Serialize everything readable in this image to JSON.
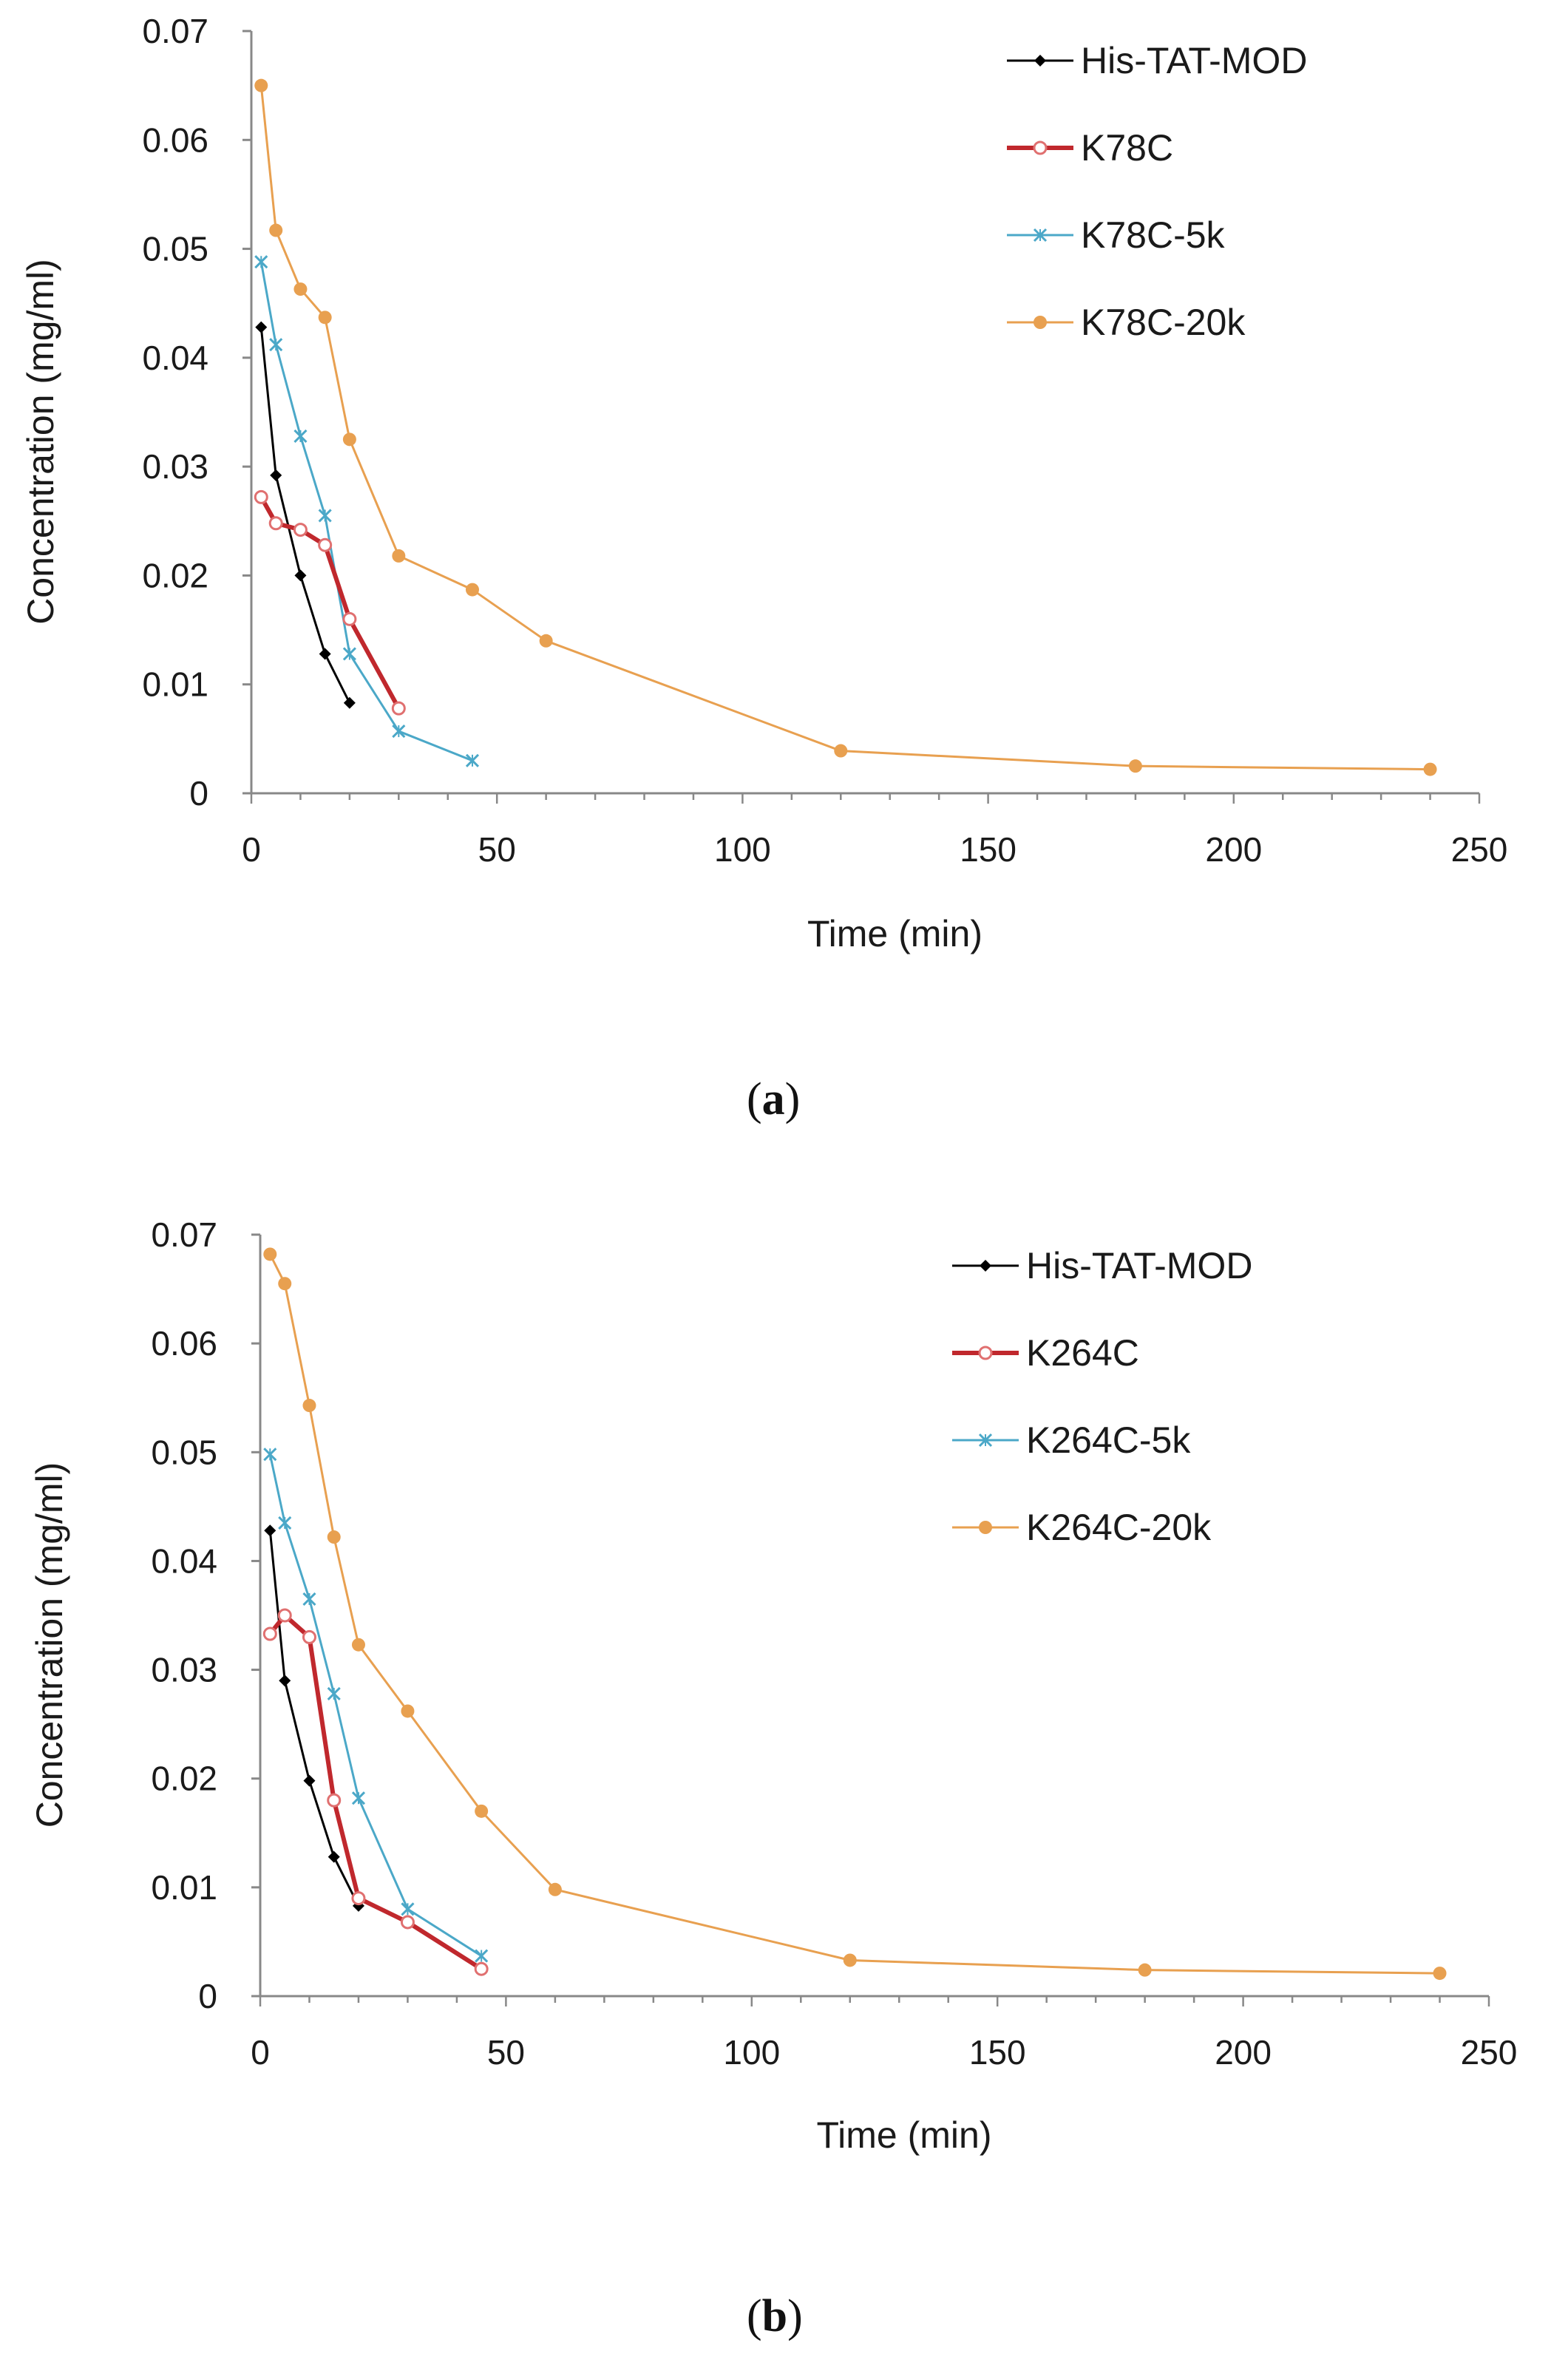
{
  "figure": {
    "panel_labels": [
      {
        "open": "(",
        "letter": "a",
        "close": ")"
      },
      {
        "open": "(",
        "letter": "b",
        "close": ")"
      }
    ]
  },
  "colors": {
    "His-TAT-MOD": "#000000",
    "K78C": "#c0282d",
    "K78C-5k": "#4ba8c8",
    "K78C-20k": "#e8a050",
    "K264C": "#c0282d",
    "K264C-5k": "#4ba8c8",
    "K264C-20k": "#e8a050"
  },
  "chart_data": [
    {
      "type": "line",
      "title": "",
      "xlabel": "Time (min)",
      "ylabel": "Concentration (mg/ml)",
      "xlim": [
        0,
        250
      ],
      "ylim": [
        0,
        0.07
      ],
      "xticks": [
        0,
        50,
        100,
        150,
        200,
        250
      ],
      "yticks": [
        0,
        0.01,
        0.02,
        0.03,
        0.04,
        0.05,
        0.06,
        0.07
      ],
      "xtick_labels": [
        "0",
        "50",
        "100",
        "150",
        "200",
        "250"
      ],
      "ytick_labels": [
        "0",
        "0.01",
        "0.02",
        "0.03",
        "0.04",
        "0.05",
        "0.06",
        "0.07"
      ],
      "grid": false,
      "legend_position": "top-right",
      "series": [
        {
          "name": "His-TAT-MOD",
          "marker": "diamond",
          "width": 3,
          "x": [
            2,
            5,
            10,
            15,
            20
          ],
          "y": [
            0.0428,
            0.0292,
            0.02,
            0.0128,
            0.0083
          ]
        },
        {
          "name": "K78C",
          "marker": "open-circle",
          "width": 6,
          "x": [
            2,
            5,
            10,
            15,
            20,
            30
          ],
          "y": [
            0.0272,
            0.0248,
            0.0242,
            0.0228,
            0.016,
            0.0078
          ]
        },
        {
          "name": "K78C-5k",
          "marker": "star",
          "width": 3,
          "x": [
            2,
            5,
            10,
            15,
            20,
            30,
            45
          ],
          "y": [
            0.0488,
            0.0412,
            0.0328,
            0.0255,
            0.0128,
            0.0057,
            0.003
          ]
        },
        {
          "name": "K78C-20k",
          "marker": "dot",
          "width": 3,
          "x": [
            2,
            5,
            10,
            15,
            20,
            30,
            45,
            60,
            120,
            180,
            240
          ],
          "y": [
            0.065,
            0.0517,
            0.0463,
            0.0437,
            0.0325,
            0.0218,
            0.0187,
            0.014,
            0.0039,
            0.0025,
            0.0022
          ]
        }
      ]
    },
    {
      "type": "line",
      "title": "",
      "xlabel": "Time (min)",
      "ylabel": "Concentration (mg/ml)",
      "xlim": [
        0,
        250
      ],
      "ylim": [
        0,
        0.07
      ],
      "xticks": [
        0,
        50,
        100,
        150,
        200,
        250
      ],
      "yticks": [
        0,
        0.01,
        0.02,
        0.03,
        0.04,
        0.05,
        0.06,
        0.07
      ],
      "xtick_labels": [
        "0",
        "50",
        "100",
        "150",
        "200",
        "250"
      ],
      "ytick_labels": [
        "0",
        "0.01",
        "0.02",
        "0.03",
        "0.04",
        "0.05",
        "0.06",
        "0.07"
      ],
      "grid": false,
      "legend_position": "top-right",
      "series": [
        {
          "name": "His-TAT-MOD",
          "marker": "diamond",
          "width": 3,
          "x": [
            2,
            5,
            10,
            15,
            20
          ],
          "y": [
            0.0428,
            0.029,
            0.0198,
            0.0128,
            0.0083
          ]
        },
        {
          "name": "K264C",
          "marker": "open-circle",
          "width": 6,
          "x": [
            2,
            5,
            10,
            15,
            20,
            30,
            45
          ],
          "y": [
            0.0333,
            0.035,
            0.033,
            0.018,
            0.009,
            0.0068,
            0.0025
          ]
        },
        {
          "name": "K264C-5k",
          "marker": "star",
          "width": 3,
          "x": [
            2,
            5,
            10,
            15,
            20,
            30,
            45
          ],
          "y": [
            0.0498,
            0.0435,
            0.0365,
            0.0278,
            0.0182,
            0.008,
            0.0037
          ]
        },
        {
          "name": "K264C-20k",
          "marker": "dot",
          "width": 3,
          "x": [
            2,
            5,
            10,
            15,
            20,
            30,
            45,
            60,
            120,
            180,
            240
          ],
          "y": [
            0.0682,
            0.0655,
            0.0543,
            0.0422,
            0.0323,
            0.0262,
            0.017,
            0.0098,
            0.0033,
            0.0024,
            0.0021
          ]
        }
      ]
    }
  ]
}
